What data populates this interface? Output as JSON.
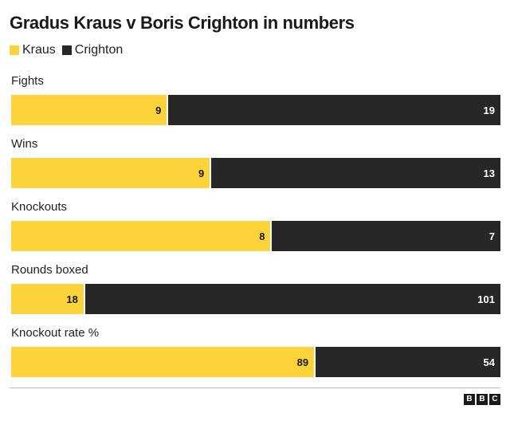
{
  "chart_data": {
    "type": "bar",
    "stacking": "100% stacked horizontal",
    "title": "Gradus Kraus v Boris Crighton in numbers",
    "categories": [
      "Fights",
      "Wins",
      "Knockouts",
      "Rounds boxed",
      "Knockout rate %"
    ],
    "series": [
      {
        "name": "Kraus",
        "color": "#fdd33c",
        "values": [
          9,
          9,
          8,
          18,
          89
        ]
      },
      {
        "name": "Crighton",
        "color": "#272727",
        "values": [
          19,
          13,
          7,
          101,
          54
        ]
      }
    ]
  },
  "source_logo": {
    "letters": [
      "B",
      "B",
      "C"
    ]
  }
}
